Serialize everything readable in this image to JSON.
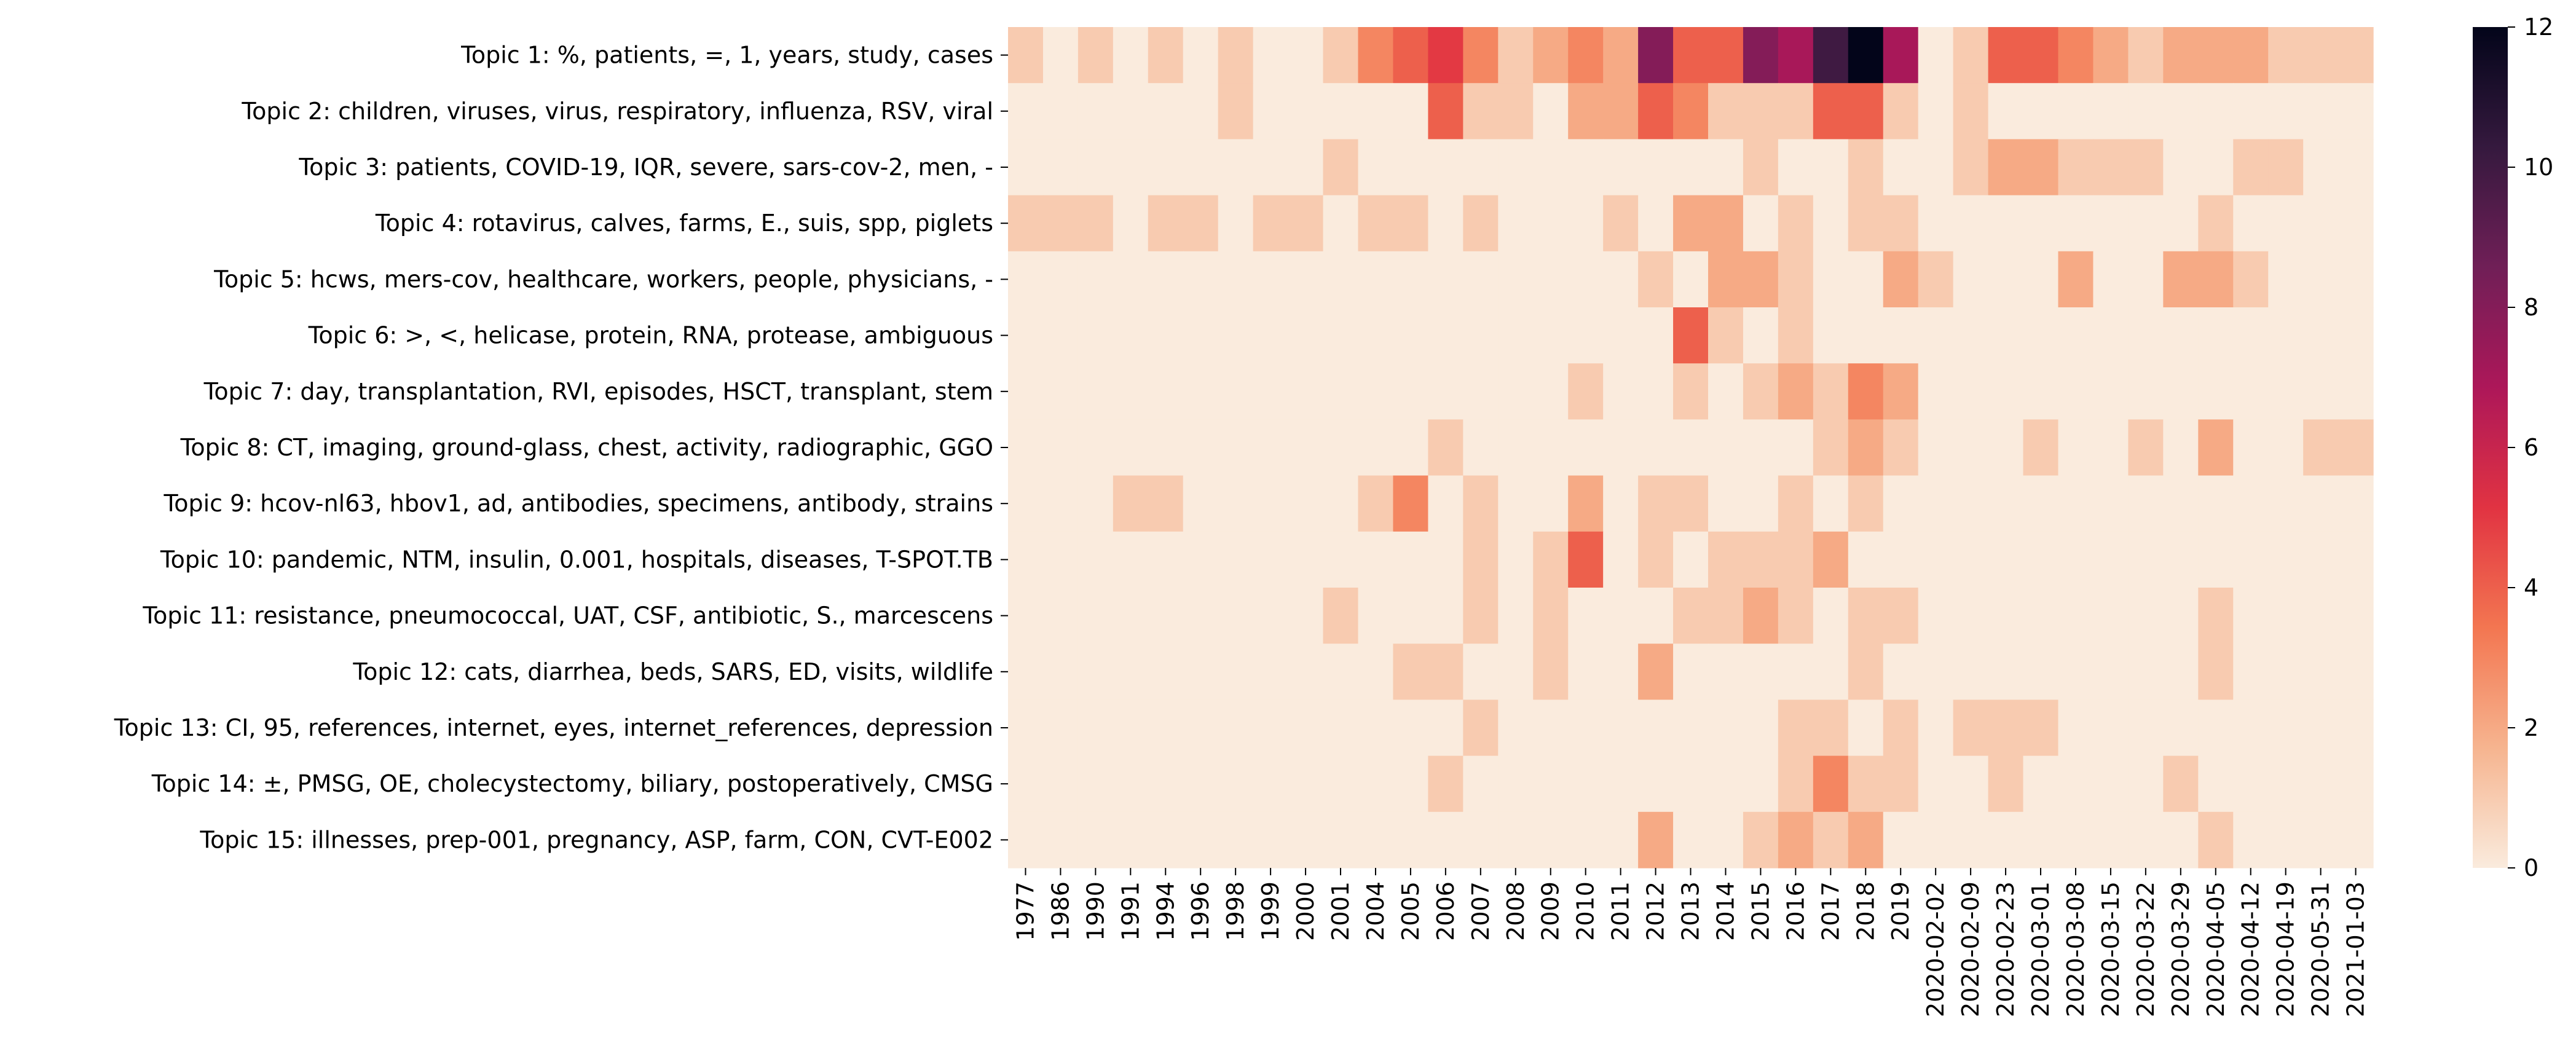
{
  "chart_data": {
    "type": "heatmap",
    "title": "",
    "xlabel": "",
    "ylabel": "",
    "x": [
      "1977",
      "1986",
      "1990",
      "1991",
      "1994",
      "1996",
      "1998",
      "1999",
      "2000",
      "2001",
      "2004",
      "2005",
      "2006",
      "2007",
      "2008",
      "2009",
      "2010",
      "2011",
      "2012",
      "2013",
      "2014",
      "2015",
      "2016",
      "2017",
      "2018",
      "2019",
      "2020-02-02",
      "2020-02-09",
      "2020-02-23",
      "2020-03-01",
      "2020-03-08",
      "2020-03-15",
      "2020-03-22",
      "2020-03-29",
      "2020-04-05",
      "2020-04-12",
      "2020-04-19",
      "2020-05-31",
      "2021-01-03"
    ],
    "y": [
      "Topic 1: %, patients, =, 1, years, study, cases",
      "Topic 2: children, viruses, virus, respiratory, influenza, RSV, viral",
      "Topic 3: patients, COVID-19, IQR, severe, sars-cov-2, men, -",
      "Topic 4: rotavirus, calves, farms, E., suis, spp, piglets",
      "Topic 5: hcws, mers-cov, healthcare, workers, people, physicians, -",
      "Topic 6: >, <, helicase, protein, RNA, protease, ambiguous",
      "Topic 7: day, transplantation, RVI, episodes, HSCT, transplant, stem",
      "Topic 8: CT, imaging, ground-glass, chest, activity, radiographic, GGO",
      "Topic 9: hcov-nl63, hbov1, ad, antibodies, specimens, antibody, strains",
      "Topic 10: pandemic, NTM, insulin, 0.001, hospitals, diseases, T-SPOT.TB",
      "Topic 11: resistance, pneumococcal, UAT, CSF, antibiotic, S., marcescens",
      "Topic 12: cats, diarrhea, beds, SARS, ED, visits, wildlife",
      "Topic 13: CI, 95, references, internet, eyes, internet_references, depression",
      "Topic 14: ±, PMSG, OE, cholecystectomy, biliary, postoperatively, CMSG",
      "Topic 15: illnesses, prep-001, pregnancy, ASP, farm, CON, CVT-E002"
    ],
    "values": [
      [
        1,
        0,
        1,
        0,
        1,
        0,
        1,
        0,
        0,
        1,
        3,
        4,
        5,
        3,
        1,
        2,
        3,
        2,
        8,
        4,
        4,
        8,
        7,
        10,
        12,
        7,
        0,
        1,
        4,
        4,
        3,
        2,
        1,
        2,
        2,
        2,
        1,
        1,
        1
      ],
      [
        0,
        0,
        0,
        0,
        0,
        0,
        1,
        0,
        0,
        0,
        0,
        0,
        4,
        1,
        1,
        0,
        2,
        2,
        4,
        3,
        1,
        1,
        1,
        4,
        4,
        1,
        0,
        1,
        0,
        0,
        0,
        0,
        0,
        0,
        0,
        0,
        0,
        0,
        0
      ],
      [
        0,
        0,
        0,
        0,
        0,
        0,
        0,
        0,
        0,
        1,
        0,
        0,
        0,
        0,
        0,
        0,
        0,
        0,
        0,
        0,
        0,
        1,
        0,
        0,
        1,
        0,
        0,
        1,
        2,
        2,
        1,
        1,
        1,
        0,
        0,
        1,
        1,
        0,
        0
      ],
      [
        1,
        1,
        1,
        0,
        1,
        1,
        0,
        1,
        1,
        0,
        1,
        1,
        0,
        1,
        0,
        0,
        0,
        1,
        0,
        2,
        2,
        0,
        1,
        0,
        1,
        1,
        0,
        0,
        0,
        0,
        0,
        0,
        0,
        0,
        1,
        0,
        0,
        0,
        0
      ],
      [
        0,
        0,
        0,
        0,
        0,
        0,
        0,
        0,
        0,
        0,
        0,
        0,
        0,
        0,
        0,
        0,
        0,
        0,
        1,
        0,
        2,
        2,
        1,
        0,
        0,
        2,
        1,
        0,
        0,
        0,
        2,
        0,
        0,
        2,
        2,
        1,
        0,
        0,
        0
      ],
      [
        0,
        0,
        0,
        0,
        0,
        0,
        0,
        0,
        0,
        0,
        0,
        0,
        0,
        0,
        0,
        0,
        0,
        0,
        0,
        4,
        1,
        0,
        1,
        0,
        0,
        0,
        0,
        0,
        0,
        0,
        0,
        0,
        0,
        0,
        0,
        0,
        0,
        0,
        0
      ],
      [
        0,
        0,
        0,
        0,
        0,
        0,
        0,
        0,
        0,
        0,
        0,
        0,
        0,
        0,
        0,
        0,
        1,
        0,
        0,
        1,
        0,
        1,
        2,
        1,
        3,
        2,
        0,
        0,
        0,
        0,
        0,
        0,
        0,
        0,
        0,
        0,
        0,
        0,
        0
      ],
      [
        0,
        0,
        0,
        0,
        0,
        0,
        0,
        0,
        0,
        0,
        0,
        0,
        1,
        0,
        0,
        0,
        0,
        0,
        0,
        0,
        0,
        0,
        0,
        1,
        2,
        1,
        0,
        0,
        0,
        1,
        0,
        0,
        1,
        0,
        2,
        0,
        0,
        1,
        1
      ],
      [
        0,
        0,
        0,
        1,
        1,
        0,
        0,
        0,
        0,
        0,
        1,
        3,
        0,
        1,
        0,
        0,
        2,
        0,
        1,
        1,
        0,
        0,
        1,
        0,
        1,
        0,
        0,
        0,
        0,
        0,
        0,
        0,
        0,
        0,
        0,
        0,
        0,
        0,
        0
      ],
      [
        0,
        0,
        0,
        0,
        0,
        0,
        0,
        0,
        0,
        0,
        0,
        0,
        0,
        1,
        0,
        1,
        4,
        0,
        1,
        0,
        1,
        1,
        1,
        2,
        0,
        0,
        0,
        0,
        0,
        0,
        0,
        0,
        0,
        0,
        0,
        0,
        0,
        0,
        0
      ],
      [
        0,
        0,
        0,
        0,
        0,
        0,
        0,
        0,
        0,
        1,
        0,
        0,
        0,
        1,
        0,
        1,
        0,
        0,
        0,
        1,
        1,
        2,
        1,
        0,
        1,
        1,
        0,
        0,
        0,
        0,
        0,
        0,
        0,
        0,
        1,
        0,
        0,
        0,
        0
      ],
      [
        0,
        0,
        0,
        0,
        0,
        0,
        0,
        0,
        0,
        0,
        0,
        1,
        1,
        0,
        0,
        1,
        0,
        0,
        2,
        0,
        0,
        0,
        0,
        0,
        1,
        0,
        0,
        0,
        0,
        0,
        0,
        0,
        0,
        0,
        1,
        0,
        0,
        0,
        0
      ],
      [
        0,
        0,
        0,
        0,
        0,
        0,
        0,
        0,
        0,
        0,
        0,
        0,
        0,
        1,
        0,
        0,
        0,
        0,
        0,
        0,
        0,
        0,
        1,
        1,
        0,
        1,
        0,
        1,
        1,
        1,
        0,
        0,
        0,
        0,
        0,
        0,
        0,
        0,
        0
      ],
      [
        0,
        0,
        0,
        0,
        0,
        0,
        0,
        0,
        0,
        0,
        0,
        0,
        1,
        0,
        0,
        0,
        0,
        0,
        0,
        0,
        0,
        0,
        1,
        3,
        1,
        1,
        0,
        0,
        1,
        0,
        0,
        0,
        0,
        1,
        0,
        0,
        0,
        0,
        0
      ],
      [
        0,
        0,
        0,
        0,
        0,
        0,
        0,
        0,
        0,
        0,
        0,
        0,
        0,
        0,
        0,
        0,
        0,
        0,
        2,
        0,
        0,
        1,
        2,
        1,
        2,
        0,
        0,
        0,
        0,
        0,
        0,
        0,
        0,
        0,
        1,
        0,
        0,
        0,
        0
      ]
    ],
    "vmin": 0,
    "vmax": 12,
    "colorbar": {
      "ticks": [
        "0",
        "2",
        "4",
        "6",
        "8",
        "10",
        "12"
      ],
      "colormap": "rocket_r",
      "colormap_stops": [
        "#faebdd",
        "#f6b48f",
        "#f37651",
        "#e13342",
        "#ad1759",
        "#701f57",
        "#35193e",
        "#03051a"
      ]
    },
    "grid": false
  }
}
